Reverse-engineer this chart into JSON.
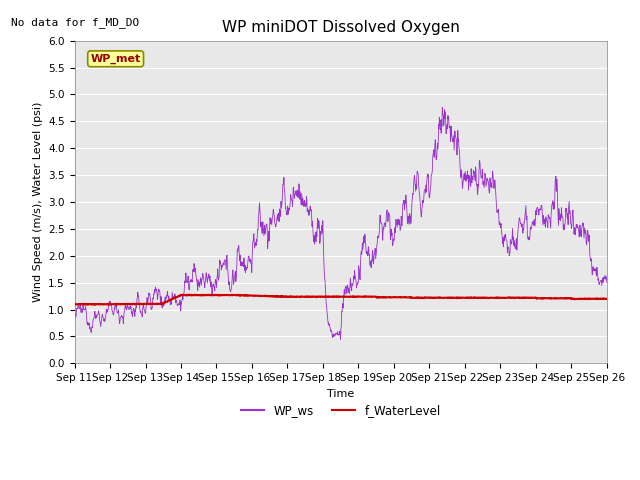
{
  "title": "WP miniDOT Dissolved Oxygen",
  "no_data_text": "No data for f_MD_DO",
  "ylabel": "Wind Speed (m/s), Water Level (psi)",
  "xlabel": "Time",
  "legend_label1": "WP_ws",
  "legend_label2": "f_WaterLevel",
  "wp_met_label": "WP_met",
  "ylim": [
    0.0,
    6.0
  ],
  "background_color": "#e8e8e8",
  "line1_color": "#9933cc",
  "line2_color": "#cc0000",
  "title_fontsize": 11,
  "label_fontsize": 8,
  "tick_fontsize": 7.5,
  "no_data_fontsize": 8,
  "x_ticks": [
    "Sep 11",
    "Sep 12",
    "Sep 13",
    "Sep 14",
    "Sep 15",
    "Sep 16",
    "Sep 17",
    "Sep 18",
    "Sep 19",
    "Sep 20",
    "Sep 21",
    "Sep 22",
    "Sep 23",
    "Sep 24",
    "Sep 25",
    "Sep 26"
  ],
  "x_tick_positions": [
    0,
    1,
    2,
    3,
    4,
    5,
    6,
    7,
    8,
    9,
    10,
    11,
    12,
    13,
    14,
    15
  ]
}
